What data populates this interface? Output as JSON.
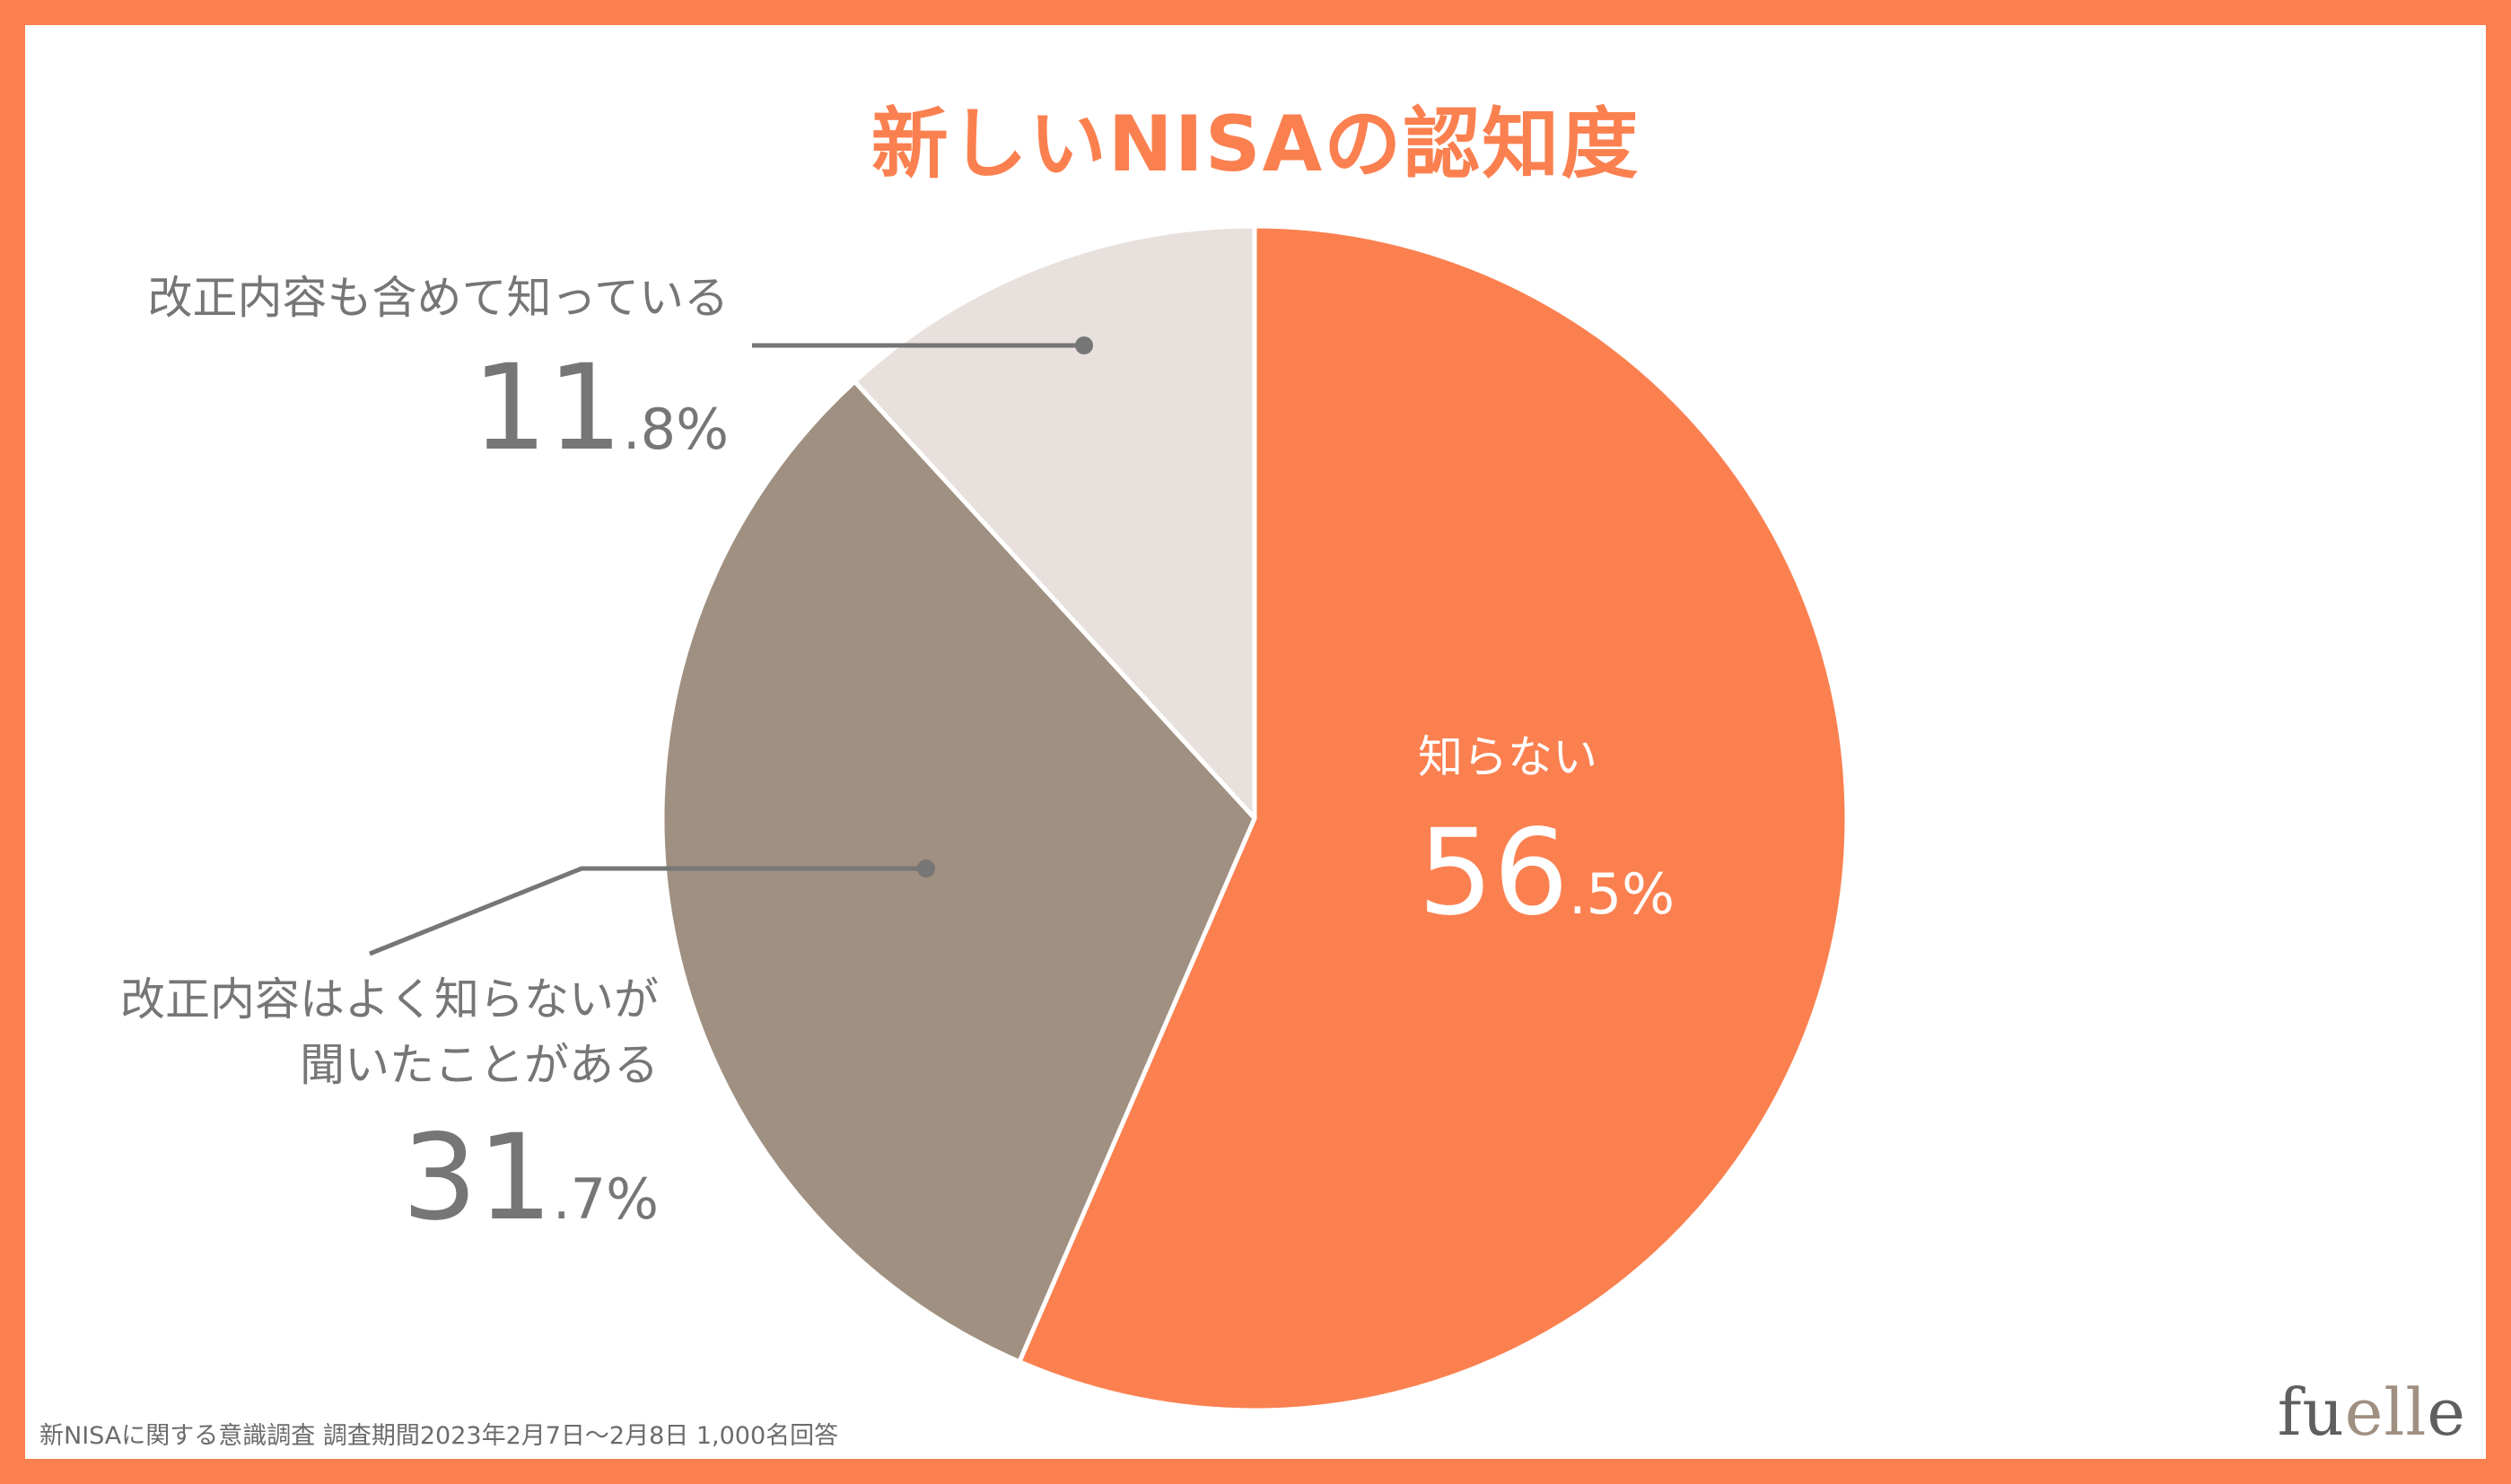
{
  "chart_data": {
    "type": "pie",
    "title": "新しいNISAの認知度",
    "slices": [
      {
        "label": "知らない",
        "value": 56.5,
        "int": "56",
        "dec": ".5%",
        "color": "#fb8050"
      },
      {
        "label": "改正内容はよく知らないが聞いたことがある",
        "line1": "改正内容はよく知らないが",
        "line2": "聞いたことがある",
        "value": 31.7,
        "int": "31",
        "dec": ".7%",
        "color": "#a09081"
      },
      {
        "label": "改正内容も含めて知っている",
        "value": 11.8,
        "int": "11",
        "dec": ".8%",
        "color": "#e8e0dc"
      }
    ],
    "start": "12 o'clock",
    "direction": "clockwise"
  },
  "colors": {
    "frame": "#fb8050",
    "title": "#fb8050",
    "label_text": "#767676",
    "leader_line": "#767676",
    "slice_border": "#ffffff"
  },
  "footnote": "新NISAに関する意識調査 調査期間2023年2月7日〜2月8日 1,000名回答",
  "brand": {
    "part1": "fu",
    "part2": "ell",
    "part3": "e"
  }
}
